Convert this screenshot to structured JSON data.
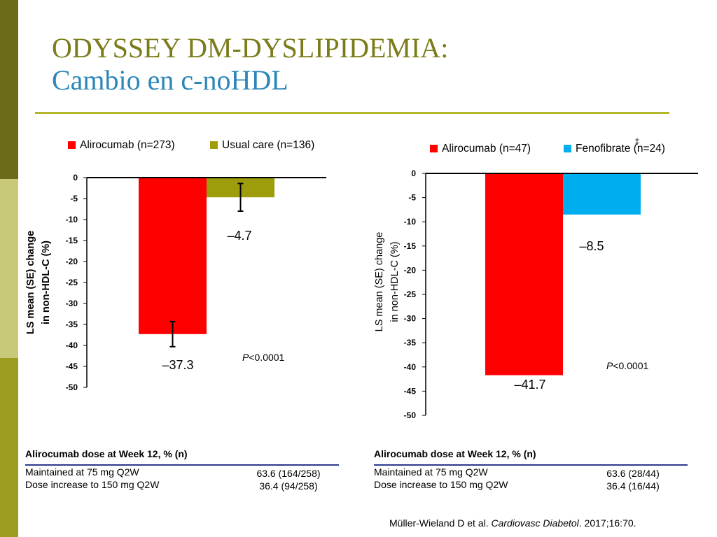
{
  "slide": {
    "title_line1": "ODYSSEY DM-DYSLIPIDEMIA:",
    "title_line2": "Cambio en c-noHDL",
    "stripe_colors": [
      "#6b6b1a",
      "#c9c97a",
      "#9d9d22"
    ],
    "citation_pre": "Müller-Wieland D et al. ",
    "citation_journal": "Cardiovasc Diabetol",
    "citation_post": ". 2017;16:70."
  },
  "chart_data": [
    {
      "type": "bar",
      "categories": [
        "Alirocumab (n=273)",
        "Usual care (n=136)"
      ],
      "values": [
        -37.3,
        -4.7
      ],
      "errors": [
        3.0,
        3.3
      ],
      "value_labels": [
        "–37.3",
        "–4.7"
      ],
      "colors": [
        "#ff0000",
        "#9d9d0c"
      ],
      "ylim": [
        -50,
        0
      ],
      "yticks": [
        "0",
        "-5",
        "-10",
        "-15",
        "-20",
        "-25",
        "-30",
        "-35",
        "-40",
        "-45",
        "-50"
      ],
      "ylabel_line1": "LS mean (SE) change",
      "ylabel_line2": "in non-HDL-C (%)",
      "legend_position": "top",
      "p_prefix": "P",
      "p_value": "<0.0001",
      "marker": ""
    },
    {
      "type": "bar",
      "categories": [
        "Alirocumab (n=47)",
        "Fenofibrate (n=24)"
      ],
      "values": [
        -41.7,
        -8.5
      ],
      "errors": [
        0,
        0
      ],
      "value_labels": [
        "–41.7",
        "–8.5"
      ],
      "colors": [
        "#ff0000",
        "#00aeef"
      ],
      "ylim": [
        -50,
        0
      ],
      "yticks": [
        "0",
        "-5",
        "-10",
        "-15",
        "-20",
        "-25",
        "-30",
        "-35",
        "-40",
        "-45",
        "-50"
      ],
      "ylabel_line1": "LS mean (SE) change",
      "ylabel_line2": "in non-HDL-C (%)",
      "legend_position": "top",
      "p_prefix": "P",
      "p_value": "<0.0001",
      "marker": "‡"
    }
  ],
  "dose_tables": [
    {
      "header": "Alirocumab dose at Week 12, % (n)",
      "rows": [
        {
          "label": "Maintained at 75 mg Q2W",
          "value": "63.6 (164/258)"
        },
        {
          "label": "Dose increase to 150 mg Q2W",
          "value": "36.4 (94/258)"
        }
      ]
    },
    {
      "header": "Alirocumab dose at Week 12, % (n)",
      "rows": [
        {
          "label": "Maintained at 75 mg Q2W",
          "value": "63.6 (28/44)"
        },
        {
          "label": "Dose increase to 150 mg Q2W",
          "value": "36.4 (16/44)"
        }
      ]
    }
  ]
}
